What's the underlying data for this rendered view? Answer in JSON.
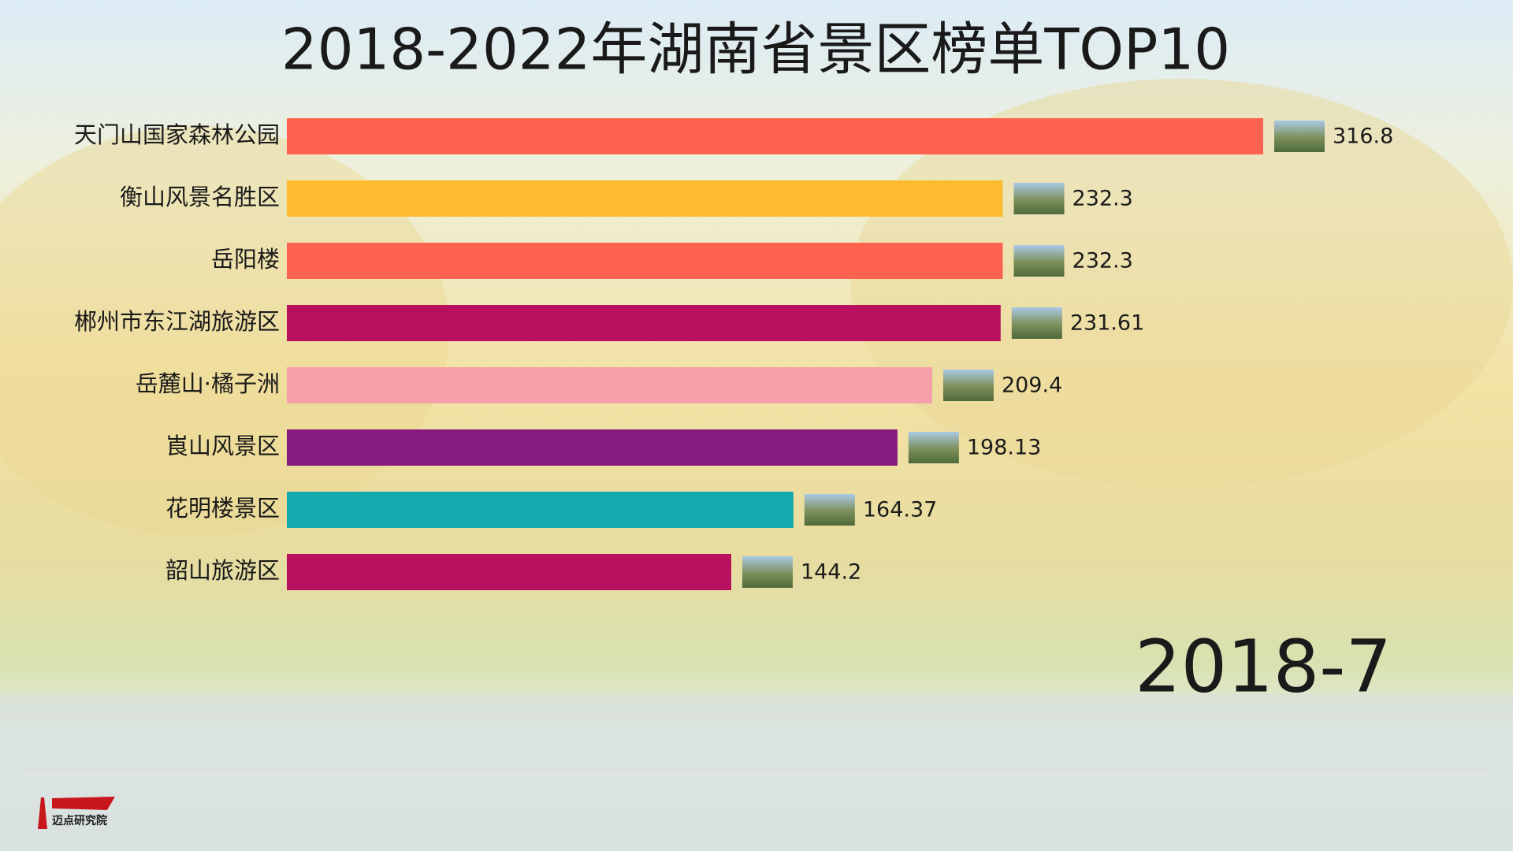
{
  "chart_data": {
    "type": "bar",
    "title": "2018-2022年湖南省景区榜单TOP10",
    "categories": [
      "天门山国家森林公园",
      "衡山风景名胜区",
      "岳阳楼",
      "郴州市东江湖旅游区",
      "岳麓山·橘子洲",
      "崀山风景区",
      "花明楼景区",
      "韶山旅游区"
    ],
    "values": [
      316.8,
      232.3,
      232.3,
      231.61,
      209.4,
      198.13,
      164.37,
      144.2
    ],
    "colors": [
      "#fd6350",
      "#fdbb2f",
      "#fd6350",
      "#b8105e",
      "#f5a0aa",
      "#861a7e",
      "#15a8ad",
      "#b8105e"
    ],
    "date_label": "2018-7"
  },
  "logo": {
    "text": "迈点研究院"
  }
}
